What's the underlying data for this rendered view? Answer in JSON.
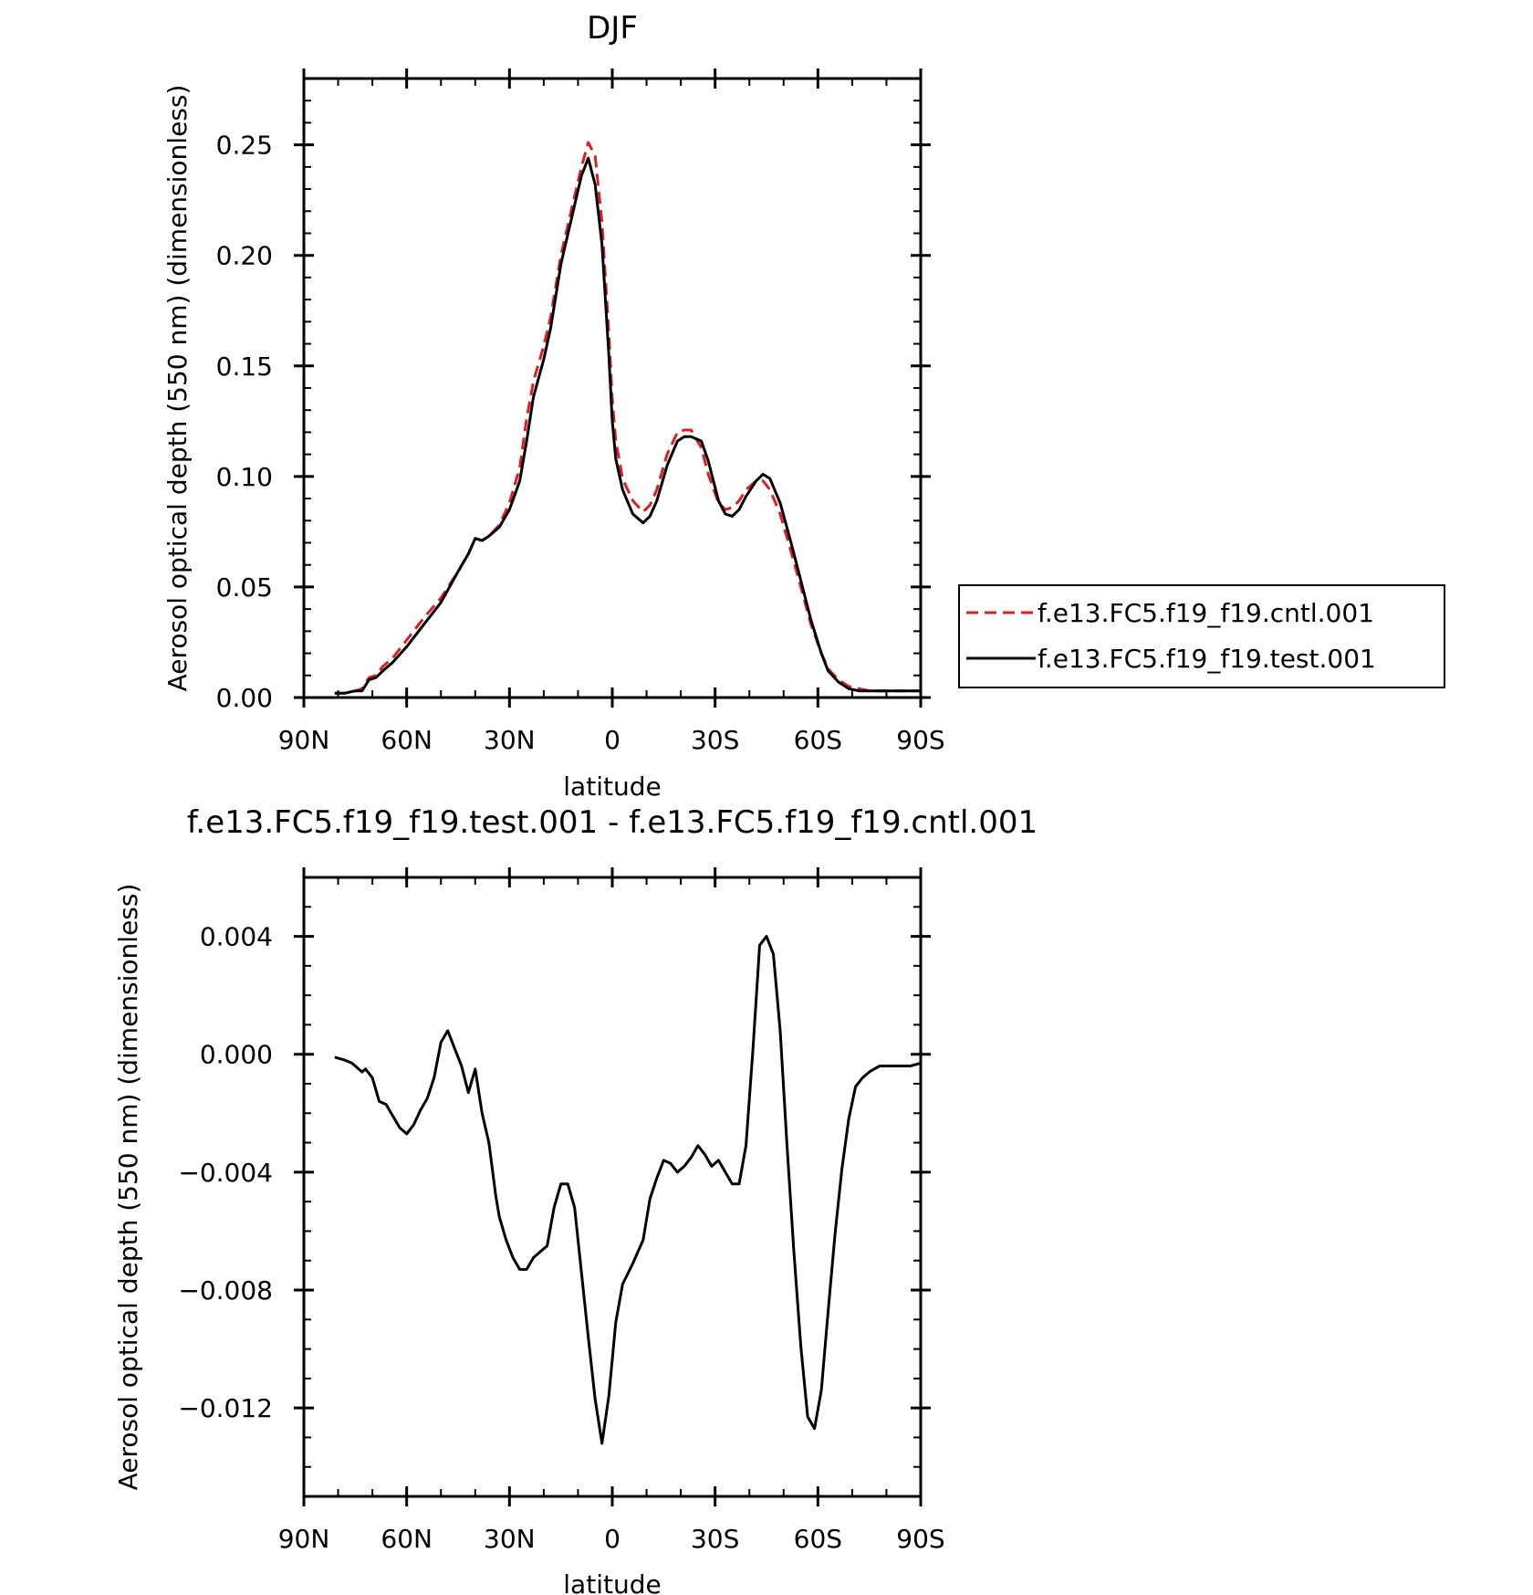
{
  "chart_data": [
    {
      "type": "line",
      "title": "DJF",
      "xlabel": "latitude",
      "ylabel": "Aerosol optical depth (550 nm) (dimensionless)",
      "xlim": [
        -90,
        90
      ],
      "ylim": [
        0,
        0.28
      ],
      "x_tick_values": [
        -90,
        -60,
        -30,
        0,
        30,
        60,
        90
      ],
      "x_tick_labels": [
        "90N",
        "60N",
        "30N",
        "0",
        "30S",
        "60S",
        "90S"
      ],
      "y_tick_values": [
        0,
        0.05,
        0.1,
        0.15,
        0.2,
        0.25
      ],
      "y_tick_labels": [
        "0.00",
        "0.05",
        "0.10",
        "0.15",
        "0.20",
        "0.25"
      ],
      "legend_position": "right",
      "grid": false,
      "x": [
        -81,
        -78,
        -75,
        -73,
        -71,
        -69,
        -67,
        -64,
        -60,
        -55,
        -50,
        -45,
        -42,
        -40,
        -38,
        -36,
        -33,
        -30,
        -27,
        -25,
        -23,
        -20,
        -18,
        -15,
        -12,
        -9,
        -7,
        -5,
        -3,
        -1,
        0,
        1,
        3,
        6,
        9,
        11,
        13,
        16,
        19,
        21,
        23,
        26,
        28,
        31,
        33,
        35,
        37,
        39,
        42,
        44,
        46,
        49,
        52,
        55,
        58,
        61,
        63,
        66,
        69,
        72,
        75,
        78,
        81,
        84,
        87,
        90
      ],
      "series": [
        {
          "name": "f.e13.FC5.f19_f19.cntl.001",
          "color": "#e41a1c",
          "dash": "dashed",
          "values": [
            0.002,
            0.002,
            0.003,
            0.004,
            0.009,
            0.01,
            0.014,
            0.018,
            0.026,
            0.036,
            0.045,
            0.057,
            0.065,
            0.072,
            0.071,
            0.073,
            0.078,
            0.088,
            0.104,
            0.126,
            0.143,
            0.159,
            0.172,
            0.2,
            0.22,
            0.24,
            0.251,
            0.245,
            0.215,
            0.165,
            0.135,
            0.116,
            0.099,
            0.089,
            0.084,
            0.087,
            0.094,
            0.11,
            0.12,
            0.121,
            0.121,
            0.113,
            0.101,
            0.088,
            0.085,
            0.086,
            0.089,
            0.094,
            0.098,
            0.098,
            0.094,
            0.083,
            0.067,
            0.05,
            0.033,
            0.02,
            0.013,
            0.008,
            0.005,
            0.004,
            0.003,
            0.003,
            0.003,
            0.003,
            0.003,
            0.003
          ]
        },
        {
          "name": "f.e13.FC5.f19_f19.test.001",
          "color": "#000000",
          "dash": "solid",
          "values": [
            0.002,
            0.002,
            0.003,
            0.003,
            0.008,
            0.009,
            0.012,
            0.016,
            0.023,
            0.033,
            0.043,
            0.057,
            0.065,
            0.072,
            0.071,
            0.073,
            0.077,
            0.085,
            0.098,
            0.116,
            0.136,
            0.153,
            0.167,
            0.196,
            0.216,
            0.236,
            0.244,
            0.232,
            0.205,
            0.155,
            0.125,
            0.108,
            0.094,
            0.083,
            0.079,
            0.082,
            0.089,
            0.105,
            0.116,
            0.118,
            0.118,
            0.116,
            0.107,
            0.089,
            0.083,
            0.082,
            0.085,
            0.091,
            0.098,
            0.101,
            0.099,
            0.088,
            0.071,
            0.053,
            0.035,
            0.02,
            0.012,
            0.007,
            0.004,
            0.003,
            0.003,
            0.003,
            0.003,
            0.003,
            0.003,
            0.003
          ]
        }
      ]
    },
    {
      "type": "line",
      "title": "f.e13.FC5.f19_f19.test.001 - f.e13.FC5.f19_f19.cntl.001",
      "xlabel": "latitude",
      "ylabel": "Aerosol optical depth (550 nm) (dimensionless)",
      "xlim": [
        -90,
        90
      ],
      "ylim": [
        -0.015,
        0.006
      ],
      "x_tick_values": [
        -90,
        -60,
        -30,
        0,
        30,
        60,
        90
      ],
      "x_tick_labels": [
        "90N",
        "60N",
        "30N",
        "0",
        "30S",
        "60S",
        "90S"
      ],
      "y_tick_values": [
        0.004,
        0.0,
        -0.004,
        -0.008,
        -0.012
      ],
      "y_tick_labels": [
        "0.004",
        "0.000",
        "−0.004",
        "−0.008",
        "−0.012"
      ],
      "grid": false,
      "x": [
        -81,
        -78,
        -76,
        -73,
        -72,
        -70,
        -68,
        -66,
        -64,
        -62,
        -60,
        -58,
        -56,
        -54,
        -52,
        -50,
        -48,
        -46,
        -44,
        -42,
        -40,
        -38,
        -36,
        -34,
        -33,
        -31,
        -29,
        -27,
        -25,
        -23,
        -21,
        -19,
        -17,
        -15,
        -13,
        -11,
        -9,
        -7,
        -5,
        -3,
        -1,
        1,
        3,
        6,
        9,
        11,
        13,
        15,
        17,
        19,
        21,
        23,
        25,
        27,
        29,
        31,
        33,
        35,
        37,
        39,
        41,
        43,
        45,
        47,
        49,
        51,
        53,
        55,
        57,
        59,
        61,
        63,
        65,
        67,
        69,
        71,
        73,
        75,
        78,
        81,
        84,
        87,
        90
      ],
      "series": [
        {
          "name": "",
          "color": "#000000",
          "dash": "solid",
          "values": [
            -0.0001,
            -0.0002,
            -0.0003,
            -0.0006,
            -0.0005,
            -0.0008,
            -0.0016,
            -0.0017,
            -0.0021,
            -0.0025,
            -0.0027,
            -0.0024,
            -0.0019,
            -0.0015,
            -0.0008,
            0.0004,
            0.0008,
            0.0002,
            -0.0004,
            -0.0013,
            -0.0005,
            -0.002,
            -0.003,
            -0.0048,
            -0.0055,
            -0.0063,
            -0.0069,
            -0.0073,
            -0.0073,
            -0.0069,
            -0.0067,
            -0.0065,
            -0.0052,
            -0.0044,
            -0.0044,
            -0.0052,
            -0.0074,
            -0.0096,
            -0.0117,
            -0.0132,
            -0.0116,
            -0.0091,
            -0.0078,
            -0.0071,
            -0.0063,
            -0.0049,
            -0.0042,
            -0.0036,
            -0.0037,
            -0.004,
            -0.0038,
            -0.0035,
            -0.0031,
            -0.0034,
            -0.0038,
            -0.0036,
            -0.004,
            -0.0044,
            -0.0044,
            -0.0031,
            0.0001,
            0.0037,
            0.004,
            0.0034,
            0.0008,
            -0.0031,
            -0.0067,
            -0.0099,
            -0.0123,
            -0.0127,
            -0.0114,
            -0.0087,
            -0.0061,
            -0.0039,
            -0.0022,
            -0.0011,
            -0.0008,
            -0.0006,
            -0.0004,
            -0.0004,
            -0.0004,
            -0.0004,
            -0.0003
          ]
        }
      ]
    }
  ]
}
